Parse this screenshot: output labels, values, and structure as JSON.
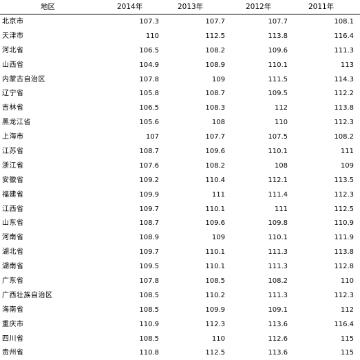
{
  "table": {
    "headers": {
      "region": "地区",
      "y2014": "2014年",
      "y2013": "2013年",
      "y2012": "2012年",
      "y2011": "2011年"
    },
    "rows": [
      {
        "region": "北京市",
        "y2014": "107.3",
        "y2013": "107.7",
        "y2012": "107.7",
        "y2011": "108.1"
      },
      {
        "region": "天津市",
        "y2014": "110",
        "y2013": "112.5",
        "y2012": "113.8",
        "y2011": "116.4"
      },
      {
        "region": "河北省",
        "y2014": "106.5",
        "y2013": "108.2",
        "y2012": "109.6",
        "y2011": "111.3"
      },
      {
        "region": "山西省",
        "y2014": "104.9",
        "y2013": "108.9",
        "y2012": "110.1",
        "y2011": "113"
      },
      {
        "region": "内蒙古自治区",
        "y2014": "107.8",
        "y2013": "109",
        "y2012": "111.5",
        "y2011": "114.3"
      },
      {
        "region": "辽宁省",
        "y2014": "105.8",
        "y2013": "108.7",
        "y2012": "109.5",
        "y2011": "112.2"
      },
      {
        "region": "吉林省",
        "y2014": "106.5",
        "y2013": "108.3",
        "y2012": "112",
        "y2011": "113.8"
      },
      {
        "region": "黑龙江省",
        "y2014": "105.6",
        "y2013": "108",
        "y2012": "110",
        "y2011": "112.3"
      },
      {
        "region": "上海市",
        "y2014": "107",
        "y2013": "107.7",
        "y2012": "107.5",
        "y2011": "108.2"
      },
      {
        "region": "江苏省",
        "y2014": "108.7",
        "y2013": "109.6",
        "y2012": "110.1",
        "y2011": "111"
      },
      {
        "region": "浙江省",
        "y2014": "107.6",
        "y2013": "108.2",
        "y2012": "108",
        "y2011": "109"
      },
      {
        "region": "安徽省",
        "y2014": "109.2",
        "y2013": "110.4",
        "y2012": "112.1",
        "y2011": "113.5"
      },
      {
        "region": "福建省",
        "y2014": "109.9",
        "y2013": "111",
        "y2012": "111.4",
        "y2011": "112.3"
      },
      {
        "region": "江西省",
        "y2014": "109.7",
        "y2013": "110.1",
        "y2012": "111",
        "y2011": "112.5"
      },
      {
        "region": "山东省",
        "y2014": "108.7",
        "y2013": "109.6",
        "y2012": "109.8",
        "y2011": "110.9"
      },
      {
        "region": "河南省",
        "y2014": "108.9",
        "y2013": "109",
        "y2012": "110.1",
        "y2011": "111.9"
      },
      {
        "region": "湖北省",
        "y2014": "109.7",
        "y2013": "110.1",
        "y2012": "111.3",
        "y2011": "113.8"
      },
      {
        "region": "湖南省",
        "y2014": "109.5",
        "y2013": "110.1",
        "y2012": "111.3",
        "y2011": "112.8"
      },
      {
        "region": "广东省",
        "y2014": "107.8",
        "y2013": "108.5",
        "y2012": "108.2",
        "y2011": "110"
      },
      {
        "region": "广西壮族自治区",
        "y2014": "108.5",
        "y2013": "110.2",
        "y2012": "111.3",
        "y2011": "112.3"
      },
      {
        "region": "海南省",
        "y2014": "108.5",
        "y2013": "109.9",
        "y2012": "109.1",
        "y2011": "112"
      },
      {
        "region": "重庆市",
        "y2014": "110.9",
        "y2013": "112.3",
        "y2012": "113.6",
        "y2011": "116.4"
      },
      {
        "region": "四川省",
        "y2014": "108.5",
        "y2013": "110",
        "y2012": "112.6",
        "y2011": "115"
      },
      {
        "region": "贵州省",
        "y2014": "110.8",
        "y2013": "112.5",
        "y2012": "113.6",
        "y2011": "115"
      }
    ]
  }
}
